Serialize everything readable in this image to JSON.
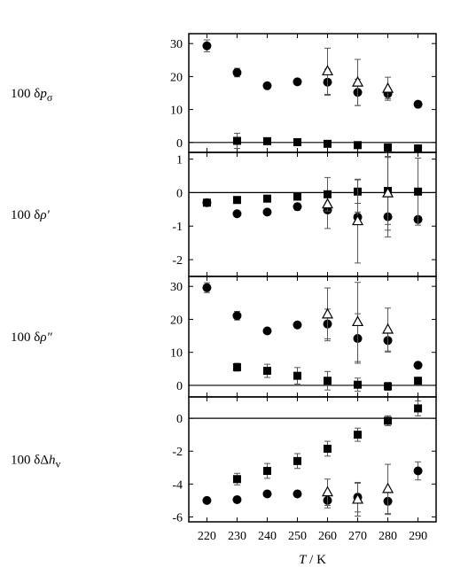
{
  "chart_data": {
    "type": "scatter",
    "xlabel": "T / K",
    "xlim": [
      214,
      296
    ],
    "xticks": [
      220,
      230,
      240,
      250,
      260,
      270,
      280,
      290
    ],
    "panels": [
      {
        "ylabel": "100 δpσ",
        "ylabel_main": "100 δ",
        "ylabel_sym": "p",
        "ylabel_sub": "σ",
        "ylim": [
          -3,
          33
        ],
        "yticks": [
          0,
          10,
          20,
          30
        ],
        "series": [
          {
            "marker": "circle",
            "points": [
              [
                220,
                29.3,
                1.8
              ],
              [
                230,
                21.2,
                1.3
              ],
              [
                240,
                17.2,
                0
              ],
              [
                250,
                18.4,
                0
              ],
              [
                260,
                18.3,
                4.0
              ],
              [
                270,
                15.2,
                4.0
              ],
              [
                280,
                14.8,
                1.5
              ],
              [
                290,
                11.6,
                0
              ]
            ]
          },
          {
            "marker": "square",
            "points": [
              [
                230,
                0.5,
                2.3
              ],
              [
                240,
                0.4,
                0
              ],
              [
                250,
                0.1,
                0
              ],
              [
                260,
                -0.4,
                0
              ],
              [
                270,
                -0.8,
                0
              ],
              [
                280,
                -1.5,
                1.0
              ],
              [
                290,
                -1.8,
                0
              ]
            ]
          },
          {
            "marker": "triangle",
            "points": [
              [
                260,
                21.6,
                7.0
              ],
              [
                270,
                18.2,
                7.0
              ],
              [
                280,
                16.3,
                3.5
              ]
            ]
          }
        ]
      },
      {
        "ylabel": "100 δρ'",
        "ylabel_main": "100 δ",
        "ylabel_sym": "ρ'",
        "ylabel_sub": "",
        "ylim": [
          -2.5,
          1.2
        ],
        "yticks": [
          -2,
          -1,
          0,
          1
        ],
        "series": [
          {
            "marker": "circle",
            "points": [
              [
                220,
                -0.3,
                0.1
              ],
              [
                230,
                -0.63,
                0
              ],
              [
                240,
                -0.58,
                0
              ],
              [
                250,
                -0.42,
                0.1
              ],
              [
                260,
                -0.52,
                0.55
              ],
              [
                270,
                -0.73,
                0.15
              ],
              [
                280,
                -0.72,
                0.6
              ],
              [
                290,
                -0.8,
                0
              ]
            ]
          },
          {
            "marker": "square",
            "points": [
              [
                220,
                -0.3,
                0
              ],
              [
                230,
                -0.22,
                0
              ],
              [
                240,
                -0.18,
                0
              ],
              [
                250,
                -0.12,
                0
              ],
              [
                260,
                -0.05,
                0.5
              ],
              [
                270,
                0.03,
                0.35
              ],
              [
                280,
                0.05,
                1.0
              ],
              [
                290,
                0.03,
                1.0
              ]
            ]
          },
          {
            "marker": "triangle",
            "points": [
              [
                260,
                -0.35,
                0
              ],
              [
                270,
                -0.85,
                1.25
              ],
              [
                280,
                -0.02,
                1.1
              ]
            ]
          }
        ]
      },
      {
        "ylabel": "100 δρ\"",
        "ylabel_main": "100 δ",
        "ylabel_sym": "ρ\"",
        "ylabel_sub": "",
        "ylim": [
          -3.5,
          33
        ],
        "yticks": [
          0,
          10,
          20,
          30
        ],
        "series": [
          {
            "marker": "circle",
            "points": [
              [
                220,
                29.6,
                1.5
              ],
              [
                230,
                21.1,
                1.3
              ],
              [
                240,
                16.5,
                0
              ],
              [
                250,
                18.3,
                0
              ],
              [
                260,
                18.6,
                4.5
              ],
              [
                270,
                14.2,
                7.5
              ],
              [
                280,
                13.6,
                3.5
              ],
              [
                290,
                6.1,
                0
              ]
            ]
          },
          {
            "marker": "square",
            "points": [
              [
                230,
                5.5,
                1.2
              ],
              [
                240,
                4.4,
                2.0
              ],
              [
                250,
                2.9,
                2.5
              ],
              [
                260,
                1.4,
                2.8
              ],
              [
                270,
                0.2,
                2.0
              ],
              [
                280,
                -0.3,
                1.2
              ],
              [
                290,
                1.4,
                0
              ]
            ]
          },
          {
            "marker": "triangle",
            "points": [
              [
                260,
                21.5,
                8.0
              ],
              [
                270,
                19.2,
                12.0
              ],
              [
                280,
                16.9,
                6.5
              ]
            ]
          }
        ]
      },
      {
        "ylabel": "100 δΔhv",
        "ylabel_main": "100 δΔ",
        "ylabel_sym": "h",
        "ylabel_sub": "v",
        "ylim": [
          -6.3,
          1.3
        ],
        "yticks": [
          0,
          -2,
          -4,
          -6
        ],
        "series": [
          {
            "marker": "circle",
            "points": [
              [
                220,
                -5.0,
                0
              ],
              [
                230,
                -4.95,
                0
              ],
              [
                240,
                -4.6,
                0
              ],
              [
                250,
                -4.6,
                0
              ],
              [
                260,
                -5.0,
                0.45
              ],
              [
                270,
                -4.8,
                0.9
              ],
              [
                280,
                -5.05,
                0.8
              ],
              [
                290,
                -3.2,
                0.55
              ]
            ]
          },
          {
            "marker": "square",
            "points": [
              [
                230,
                -3.7,
                0.35
              ],
              [
                240,
                -3.2,
                0.45
              ],
              [
                250,
                -2.6,
                0.45
              ],
              [
                260,
                -1.85,
                0.45
              ],
              [
                270,
                -1.0,
                0.4
              ],
              [
                280,
                -0.15,
                0.3
              ],
              [
                290,
                0.6,
                0.45
              ]
            ]
          },
          {
            "marker": "triangle",
            "points": [
              [
                260,
                -4.5,
                0.8
              ],
              [
                270,
                -4.95,
                1.0
              ],
              [
                280,
                -4.3,
                1.5
              ]
            ]
          }
        ]
      }
    ]
  }
}
